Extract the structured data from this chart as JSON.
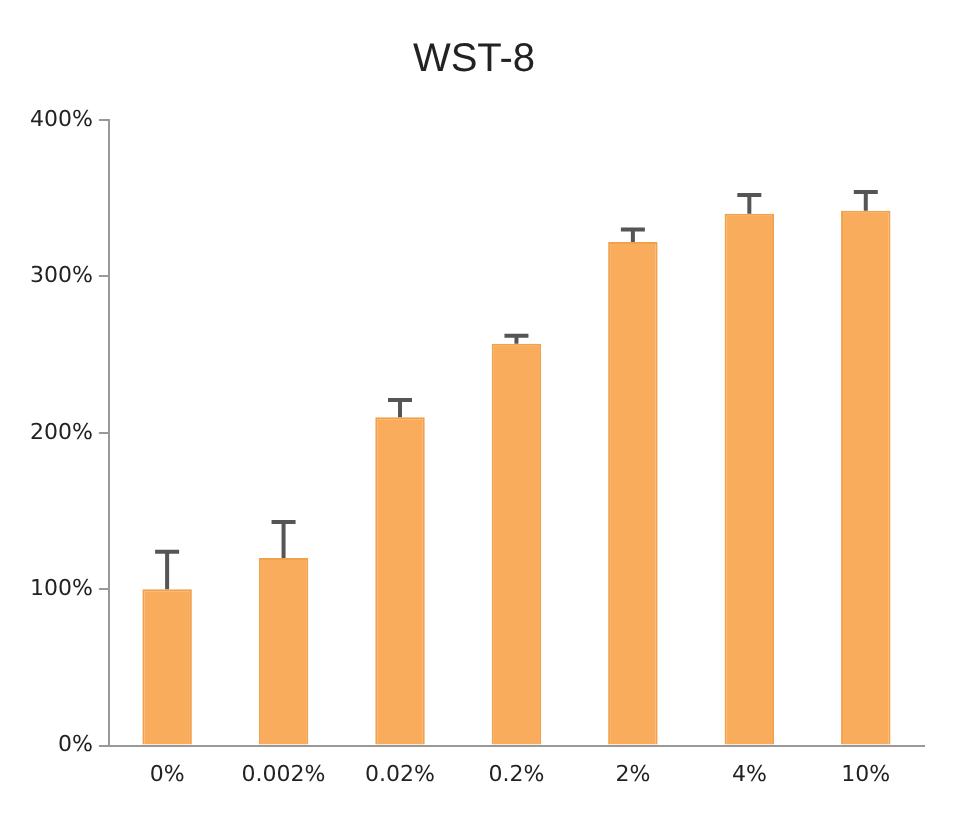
{
  "chart_data": {
    "type": "bar",
    "title": "WST-8",
    "categories": [
      "0%",
      "0.002%",
      "0.02%",
      "0.2%",
      "2%",
      "4%",
      "10%"
    ],
    "values": [
      100,
      120,
      210,
      257,
      322,
      340,
      342
    ],
    "errors": [
      [
        100,
        124
      ],
      [
        120,
        143
      ],
      [
        210,
        221
      ],
      [
        257,
        262
      ],
      [
        322,
        330
      ],
      [
        340,
        352
      ],
      [
        342,
        354
      ]
    ],
    "color": "#f8ac5c",
    "ylim": [
      0,
      400
    ],
    "yticks": [
      {
        "value": 0,
        "label": "0%"
      },
      {
        "value": 100,
        "label": "100%"
      },
      {
        "value": 200,
        "label": "200%"
      },
      {
        "value": 300,
        "label": "300%"
      },
      {
        "value": 400,
        "label": "400%"
      }
    ],
    "grid": false
  }
}
